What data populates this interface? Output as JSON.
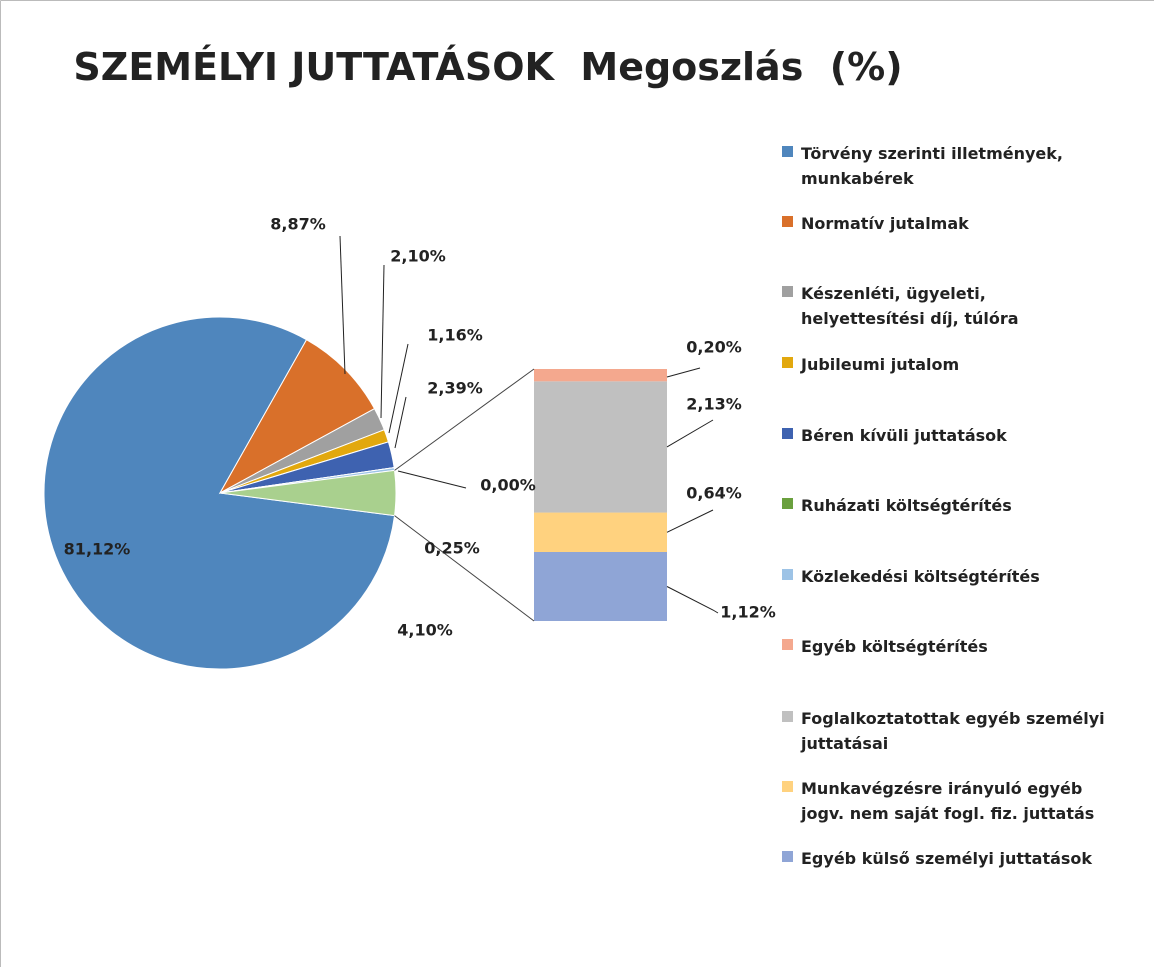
{
  "chart_data": {
    "type": "pie_of_bar",
    "title": "SZEMÉLYI JUTTATÁSOK  Megoszlás  (%)",
    "pie": {
      "categories": [
        "Törvény szerinti illetmények,\nmunkabérek",
        "Normatív jutalmak",
        "Készenléti, ügyeleti,\nhelyettesítési díj, túlóra",
        "Jubileumi jutalom",
        "Béren kívüli juttatások",
        "Ruházati költségtérítés",
        "Közlekedési költségtérítés"
      ],
      "values": [
        81.12,
        8.87,
        2.1,
        1.16,
        2.39,
        0.0,
        0.25
      ],
      "value_labels": [
        "81,12%",
        "8,87%",
        "2,10%",
        "1,16%",
        "2,39%",
        "0,00%",
        "0,25%"
      ],
      "colors": [
        "#4f86bd",
        "#d9702a",
        "#a0a0a0",
        "#e2a80e",
        "#3e62b0",
        "#6aa03e",
        "#9dc3e6"
      ]
    },
    "other": {
      "value": 4.1,
      "value_label": "4,10%",
      "color": "#a9d08e"
    },
    "bar": {
      "categories": [
        "Egyéb költségtérítés",
        "Foglalkoztatottak egyéb személyi\njuttatásai",
        "Munkavégzésre irányuló egyéb\njogv. nem saját fogl. fiz. juttatás",
        "Egyéb külső személyi juttatások"
      ],
      "values": [
        0.2,
        2.13,
        0.64,
        1.12
      ],
      "value_labels": [
        "0,20%",
        "2,13%",
        "0,64%",
        "1,12%"
      ],
      "colors": [
        "#f4a88e",
        "#c0c0c0",
        "#ffd27f",
        "#8fa5d6"
      ]
    }
  }
}
